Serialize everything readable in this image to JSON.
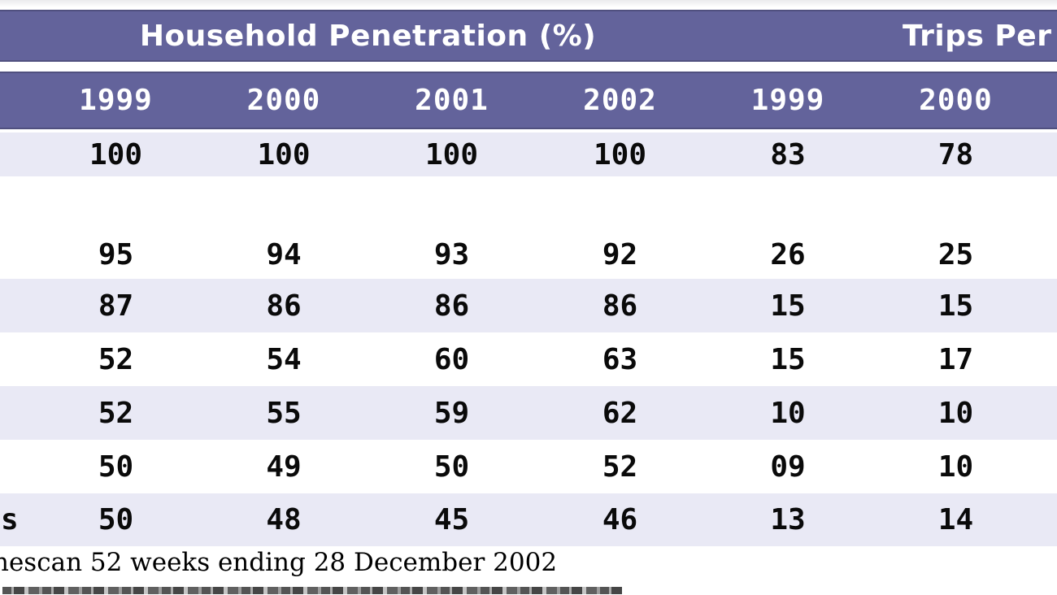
{
  "table": {
    "header_groups": {
      "household": "Household Penetration (%)",
      "trips": "Trips Per"
    },
    "year_columns": [
      "1999",
      "2000",
      "2001",
      "2002",
      "1999",
      "2000"
    ],
    "rows": [
      {
        "label": "",
        "shaded": true,
        "values": [
          "100",
          "100",
          "100",
          "100",
          "83",
          "78"
        ]
      },
      {
        "label": "",
        "shaded": false,
        "values": [
          "",
          "",
          "",
          "",
          "",
          ""
        ]
      },
      {
        "label": "",
        "shaded": false,
        "values": [
          "95",
          "94",
          "93",
          "92",
          "26",
          "25"
        ]
      },
      {
        "label": "",
        "shaded": true,
        "values": [
          "87",
          "86",
          "86",
          "86",
          "15",
          "15"
        ]
      },
      {
        "label": "",
        "shaded": false,
        "values": [
          "52",
          "54",
          "60",
          "63",
          "15",
          "17"
        ]
      },
      {
        "label": "",
        "shaded": true,
        "values": [
          "52",
          "55",
          "59",
          "62",
          "10",
          "10"
        ]
      },
      {
        "label": "",
        "shaded": false,
        "values": [
          "50",
          "49",
          "50",
          "52",
          "09",
          "10"
        ]
      },
      {
        "label": "s",
        "shaded": true,
        "values": [
          "50",
          "48",
          "45",
          "46",
          "13",
          "14"
        ]
      }
    ],
    "footnote": "nescan 52 weeks ending 28 December 2002"
  },
  "chart_data": {
    "type": "table",
    "column_groups": [
      {
        "label": "Household Penetration (%)",
        "span": 4
      },
      {
        "label": "Trips Per",
        "span": 2
      }
    ],
    "columns": [
      "1999",
      "2000",
      "2001",
      "2002",
      "1999",
      "2000"
    ],
    "rows": [
      [
        "100",
        "100",
        "100",
        "100",
        "83",
        "78"
      ],
      [
        "95",
        "94",
        "93",
        "92",
        "26",
        "25"
      ],
      [
        "87",
        "86",
        "86",
        "86",
        "15",
        "15"
      ],
      [
        "52",
        "54",
        "60",
        "63",
        "15",
        "17"
      ],
      [
        "52",
        "55",
        "59",
        "62",
        "10",
        "10"
      ],
      [
        "50",
        "49",
        "50",
        "52",
        "09",
        "10"
      ],
      [
        "50",
        "48",
        "45",
        "46",
        "13",
        "14"
      ]
    ],
    "source_note": "nescan 52 weeks ending 28 December 2002"
  },
  "colors": {
    "header_bg": "#63639B",
    "header_edge": "#50507F",
    "header_text": "#FFFFFF",
    "row_shaded": "#E9E9F5",
    "row_plain": "#FFFFFF",
    "value_text": "#0A0A0A"
  }
}
